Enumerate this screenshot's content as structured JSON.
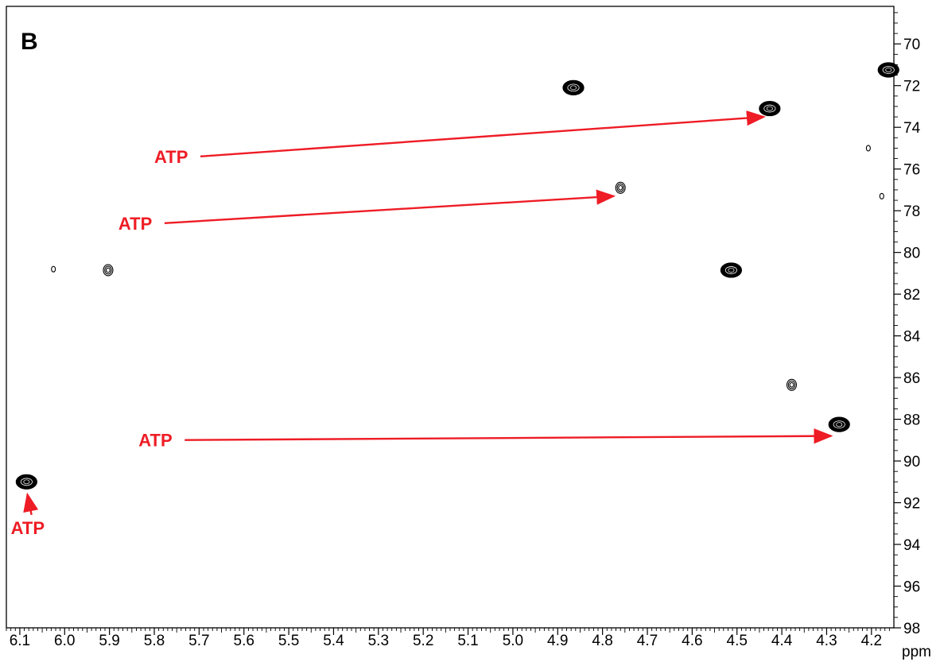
{
  "panel_label": "B",
  "colors": {
    "annotation": "#ee1c25",
    "contour": "#000000"
  },
  "chart_data": {
    "type": "scatter",
    "subtype": "2D NMR contour plot",
    "title": "",
    "xlabel": "ppm",
    "ylabel": "",
    "xlim": [
      6.13,
      4.15
    ],
    "ylim": [
      98,
      68.2
    ],
    "x_reversed": true,
    "y_reversed": true,
    "x_ticks": [
      6.1,
      6.0,
      5.9,
      5.8,
      5.7,
      5.6,
      5.5,
      5.4,
      5.3,
      5.2,
      5.1,
      5.0,
      4.9,
      4.8,
      4.7,
      4.6,
      4.5,
      4.4,
      4.3,
      4.2
    ],
    "x_tick_labels": [
      "6.1",
      "6.0",
      "5.9",
      "5.8",
      "5.7",
      "5.6",
      "5.5",
      "5.4",
      "5.3",
      "5.2",
      "5.1",
      "5.0",
      "4.9",
      "4.8",
      "4.7",
      "4.6",
      "4.5",
      "4.4",
      "4.3",
      "4.2"
    ],
    "y_ticks": [
      70,
      72,
      74,
      76,
      78,
      80,
      82,
      84,
      86,
      88,
      90,
      92,
      94,
      96,
      98
    ],
    "y_tick_labels": [
      "70",
      "72",
      "74",
      "76",
      "78",
      "80",
      "82",
      "84",
      "86",
      "88",
      "90",
      "92",
      "94",
      "96",
      "98"
    ],
    "grid": false,
    "legend": "none",
    "peaks": [
      {
        "x": 6.085,
        "y": 91.0,
        "intensity": "strong",
        "atp": true
      },
      {
        "x": 6.025,
        "y": 80.8,
        "intensity": "tiny",
        "atp": false
      },
      {
        "x": 5.903,
        "y": 80.85,
        "intensity": "weak",
        "atp": false
      },
      {
        "x": 4.865,
        "y": 72.1,
        "intensity": "strong",
        "atp": false
      },
      {
        "x": 4.76,
        "y": 76.9,
        "intensity": "weak",
        "atp": true
      },
      {
        "x": 4.513,
        "y": 80.85,
        "intensity": "strong",
        "atp": false
      },
      {
        "x": 4.427,
        "y": 73.1,
        "intensity": "strong",
        "atp": true
      },
      {
        "x": 4.378,
        "y": 86.35,
        "intensity": "weak",
        "atp": false
      },
      {
        "x": 4.272,
        "y": 88.25,
        "intensity": "strong",
        "atp": true
      },
      {
        "x": 4.207,
        "y": 75.0,
        "intensity": "tiny",
        "atp": false
      },
      {
        "x": 4.177,
        "y": 77.3,
        "intensity": "tiny",
        "atp": false
      },
      {
        "x": 4.162,
        "y": 71.25,
        "intensity": "strong",
        "atp": false
      }
    ],
    "annotations": [
      {
        "text": "ATP",
        "text_x": 5.8,
        "text_y": 75.7,
        "arrow_to_x": 4.44,
        "arrow_to_y": 73.5
      },
      {
        "text": "ATP",
        "text_x": 5.88,
        "text_y": 78.9,
        "arrow_to_x": 4.775,
        "arrow_to_y": 77.3
      },
      {
        "text": "ATP",
        "text_x": 5.835,
        "text_y": 89.3,
        "arrow_to_x": 4.29,
        "arrow_to_y": 88.8
      },
      {
        "text": "ATP",
        "text_x": 6.12,
        "text_y": 93.5,
        "arrow_to_x": 6.083,
        "arrow_to_y": 91.6
      }
    ]
  }
}
